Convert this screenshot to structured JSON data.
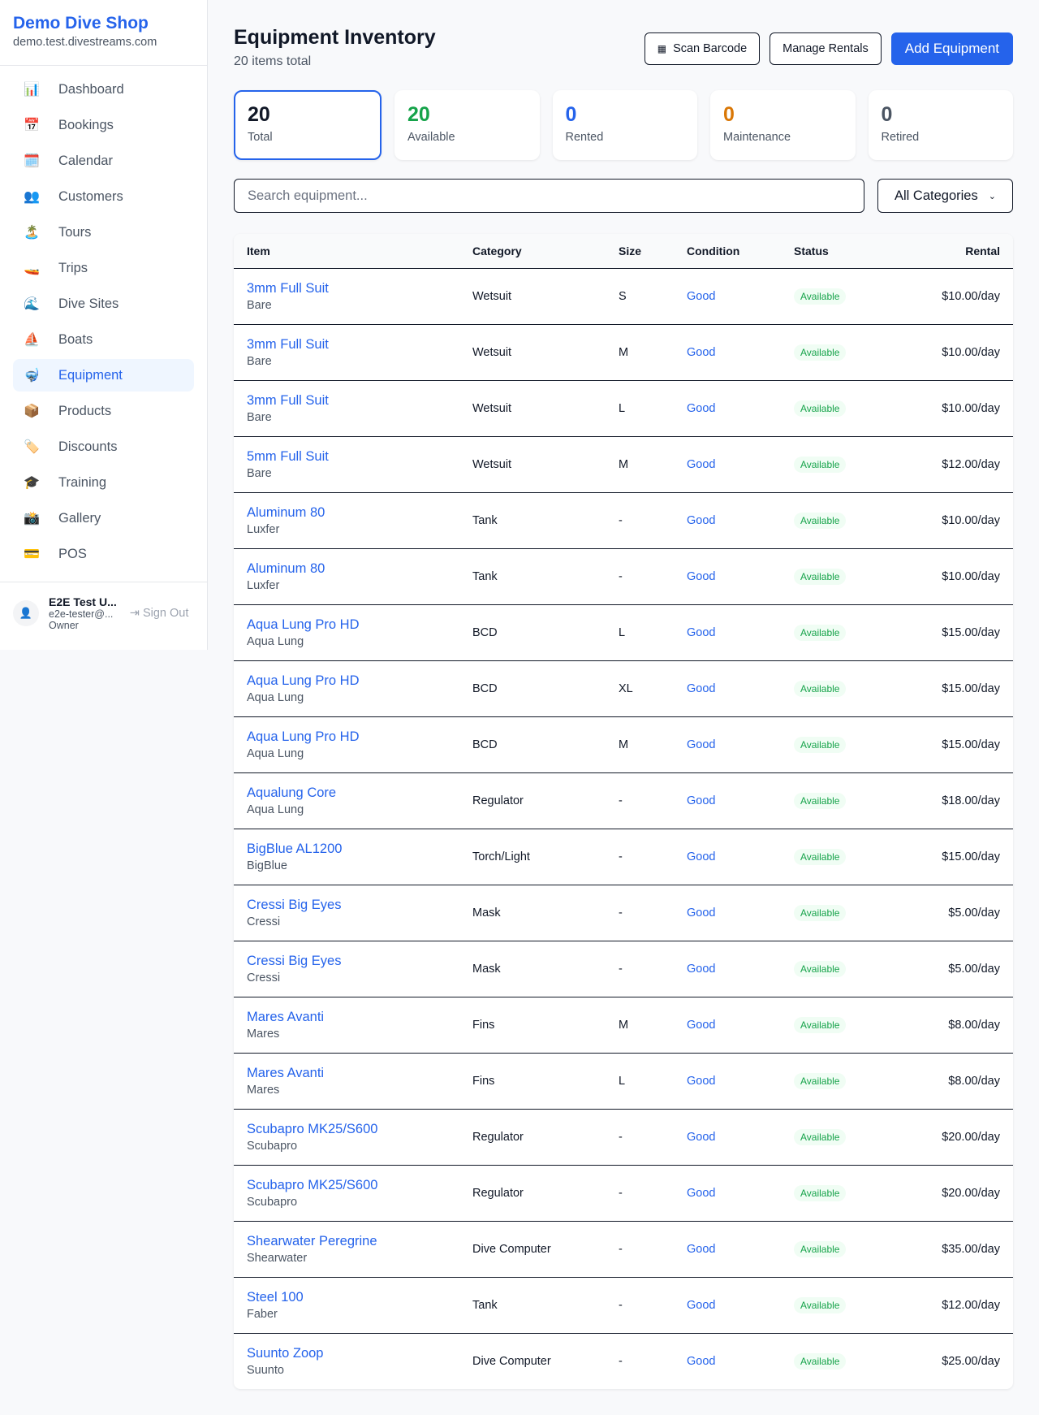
{
  "sidebar": {
    "shop_name": "Demo Dive Shop",
    "domain": "demo.test.divestreams.com",
    "items": [
      {
        "label": "Dashboard",
        "icon": "📊"
      },
      {
        "label": "Bookings",
        "icon": "📅"
      },
      {
        "label": "Calendar",
        "icon": "🗓️"
      },
      {
        "label": "Customers",
        "icon": "👥"
      },
      {
        "label": "Tours",
        "icon": "🏝️"
      },
      {
        "label": "Trips",
        "icon": "🚤"
      },
      {
        "label": "Dive Sites",
        "icon": "🌊"
      },
      {
        "label": "Boats",
        "icon": "⛵"
      },
      {
        "label": "Equipment",
        "icon": "🤿",
        "active": true
      },
      {
        "label": "Products",
        "icon": "📦"
      },
      {
        "label": "Discounts",
        "icon": "🏷️"
      },
      {
        "label": "Training",
        "icon": "🎓"
      },
      {
        "label": "Gallery",
        "icon": "📸"
      },
      {
        "label": "POS",
        "icon": "💳"
      }
    ],
    "user": {
      "name": "E2E Test U...",
      "email": "e2e-tester@...",
      "role": "Owner",
      "sign_out": "Sign Out"
    }
  },
  "header": {
    "title": "Equipment Inventory",
    "subtitle": "20 items total",
    "scan_label": "Scan Barcode",
    "manage_label": "Manage Rentals",
    "add_label": "Add Equipment"
  },
  "stats": [
    {
      "value": "20",
      "label": "Total",
      "color": "#111827"
    },
    {
      "value": "20",
      "label": "Available",
      "color": "#16a34a"
    },
    {
      "value": "0",
      "label": "Rented",
      "color": "#2563eb"
    },
    {
      "value": "0",
      "label": "Maintenance",
      "color": "#d97706"
    },
    {
      "value": "0",
      "label": "Retired",
      "color": "#4b5563"
    }
  ],
  "filters": {
    "search_placeholder": "Search equipment...",
    "category": "All Categories"
  },
  "table": {
    "headers": [
      "Item",
      "Category",
      "Size",
      "Condition",
      "Status",
      "Rental"
    ],
    "rows": [
      [
        "3mm Full Suit",
        "Bare",
        "Wetsuit",
        "S",
        "Good",
        "Available",
        "$10.00/day"
      ],
      [
        "3mm Full Suit",
        "Bare",
        "Wetsuit",
        "M",
        "Good",
        "Available",
        "$10.00/day"
      ],
      [
        "3mm Full Suit",
        "Bare",
        "Wetsuit",
        "L",
        "Good",
        "Available",
        "$10.00/day"
      ],
      [
        "5mm Full Suit",
        "Bare",
        "Wetsuit",
        "M",
        "Good",
        "Available",
        "$12.00/day"
      ],
      [
        "Aluminum 80",
        "Luxfer",
        "Tank",
        "-",
        "Good",
        "Available",
        "$10.00/day"
      ],
      [
        "Aluminum 80",
        "Luxfer",
        "Tank",
        "-",
        "Good",
        "Available",
        "$10.00/day"
      ],
      [
        "Aqua Lung Pro HD",
        "Aqua Lung",
        "BCD",
        "L",
        "Good",
        "Available",
        "$15.00/day"
      ],
      [
        "Aqua Lung Pro HD",
        "Aqua Lung",
        "BCD",
        "XL",
        "Good",
        "Available",
        "$15.00/day"
      ],
      [
        "Aqua Lung Pro HD",
        "Aqua Lung",
        "BCD",
        "M",
        "Good",
        "Available",
        "$15.00/day"
      ],
      [
        "Aqualung Core",
        "Aqua Lung",
        "Regulator",
        "-",
        "Good",
        "Available",
        "$18.00/day"
      ],
      [
        "BigBlue AL1200",
        "BigBlue",
        "Torch/Light",
        "-",
        "Good",
        "Available",
        "$15.00/day"
      ],
      [
        "Cressi Big Eyes",
        "Cressi",
        "Mask",
        "-",
        "Good",
        "Available",
        "$5.00/day"
      ],
      [
        "Cressi Big Eyes",
        "Cressi",
        "Mask",
        "-",
        "Good",
        "Available",
        "$5.00/day"
      ],
      [
        "Mares Avanti",
        "Mares",
        "Fins",
        "M",
        "Good",
        "Available",
        "$8.00/day"
      ],
      [
        "Mares Avanti",
        "Mares",
        "Fins",
        "L",
        "Good",
        "Available",
        "$8.00/day"
      ],
      [
        "Scubapro MK25/S600",
        "Scubapro",
        "Regulator",
        "-",
        "Good",
        "Available",
        "$20.00/day"
      ],
      [
        "Scubapro MK25/S600",
        "Scubapro",
        "Regulator",
        "-",
        "Good",
        "Available",
        "$20.00/day"
      ],
      [
        "Shearwater Peregrine",
        "Shearwater",
        "Dive Computer",
        "-",
        "Good",
        "Available",
        "$35.00/day"
      ],
      [
        "Steel 100",
        "Faber",
        "Tank",
        "-",
        "Good",
        "Available",
        "$12.00/day"
      ],
      [
        "Suunto Zoop",
        "Suunto",
        "Dive Computer",
        "-",
        "Good",
        "Available",
        "$25.00/day"
      ]
    ]
  }
}
